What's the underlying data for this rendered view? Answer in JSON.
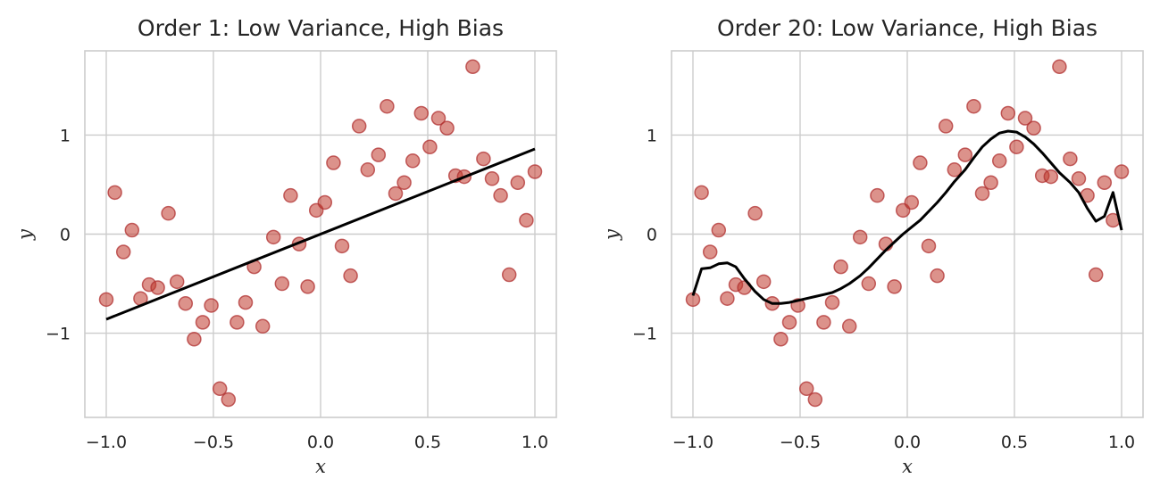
{
  "chart_data": [
    {
      "type": "scatter",
      "title": "Order 1: Low Variance, High Bias",
      "xlabel": "x",
      "ylabel": "y",
      "xlim": [
        -1.1,
        1.1
      ],
      "ylim": [
        -1.85,
        1.85
      ],
      "xticks": [
        -1.0,
        -0.5,
        0.0,
        0.5,
        1.0
      ],
      "xtick_labels": [
        "−1.0",
        "−0.5",
        "0.0",
        "0.5",
        "1.0"
      ],
      "yticks": [
        -1,
        0,
        1
      ],
      "ytick_labels": [
        "−1",
        "0",
        "1"
      ],
      "grid": true,
      "point_color": "#c0392b",
      "line_color": "#000000",
      "series": [
        {
          "kind": "points",
          "x": [
            -1.0,
            -0.96,
            -0.92,
            -0.88,
            -0.84,
            -0.8,
            -0.76,
            -0.71,
            -0.67,
            -0.63,
            -0.59,
            -0.55,
            -0.51,
            -0.47,
            -0.43,
            -0.39,
            -0.35,
            -0.31,
            -0.27,
            -0.22,
            -0.18,
            -0.14,
            -0.1,
            -0.06,
            -0.02,
            0.02,
            0.06,
            0.1,
            0.14,
            0.18,
            0.22,
            0.27,
            0.31,
            0.35,
            0.39,
            0.43,
            0.47,
            0.51,
            0.55,
            0.59,
            0.63,
            0.67,
            0.71,
            0.76,
            0.8,
            0.84,
            0.88,
            0.92,
            0.96,
            1.0
          ],
          "y": [
            -0.66,
            0.42,
            -0.18,
            0.04,
            -0.65,
            -0.51,
            -0.54,
            0.21,
            -0.48,
            -0.7,
            -1.06,
            -0.89,
            -0.72,
            -1.56,
            -1.67,
            -0.89,
            -0.69,
            -0.33,
            -0.93,
            -0.03,
            -0.5,
            0.39,
            -0.1,
            -0.53,
            0.24,
            0.32,
            0.72,
            -0.12,
            -0.42,
            1.09,
            0.65,
            0.8,
            1.29,
            0.41,
            0.52,
            0.74,
            1.22,
            0.88,
            1.17,
            1.07,
            0.59,
            0.58,
            1.69,
            0.76,
            0.56,
            0.39,
            -0.41,
            0.52,
            0.14,
            0.63
          ]
        },
        {
          "kind": "line",
          "x": [
            -1.0,
            1.0
          ],
          "y": [
            -0.86,
            0.86
          ]
        }
      ]
    },
    {
      "type": "scatter",
      "title": "Order 20: Low Variance, High Bias",
      "xlabel": "x",
      "ylabel": "y",
      "xlim": [
        -1.1,
        1.1
      ],
      "ylim": [
        -1.85,
        1.85
      ],
      "xticks": [
        -1.0,
        -0.5,
        0.0,
        0.5,
        1.0
      ],
      "xtick_labels": [
        "−1.0",
        "−0.5",
        "0.0",
        "0.5",
        "1.0"
      ],
      "yticks": [
        -1,
        0,
        1
      ],
      "ytick_labels": [
        "−1",
        "0",
        "1"
      ],
      "grid": true,
      "point_color": "#c0392b",
      "line_color": "#000000",
      "series": [
        {
          "kind": "points",
          "x": [
            -1.0,
            -0.96,
            -0.92,
            -0.88,
            -0.84,
            -0.8,
            -0.76,
            -0.71,
            -0.67,
            -0.63,
            -0.59,
            -0.55,
            -0.51,
            -0.47,
            -0.43,
            -0.39,
            -0.35,
            -0.31,
            -0.27,
            -0.22,
            -0.18,
            -0.14,
            -0.1,
            -0.06,
            -0.02,
            0.02,
            0.06,
            0.1,
            0.14,
            0.18,
            0.22,
            0.27,
            0.31,
            0.35,
            0.39,
            0.43,
            0.47,
            0.51,
            0.55,
            0.59,
            0.63,
            0.67,
            0.71,
            0.76,
            0.8,
            0.84,
            0.88,
            0.92,
            0.96,
            1.0
          ],
          "y": [
            -0.66,
            0.42,
            -0.18,
            0.04,
            -0.65,
            -0.51,
            -0.54,
            0.21,
            -0.48,
            -0.7,
            -1.06,
            -0.89,
            -0.72,
            -1.56,
            -1.67,
            -0.89,
            -0.69,
            -0.33,
            -0.93,
            -0.03,
            -0.5,
            0.39,
            -0.1,
            -0.53,
            0.24,
            0.32,
            0.72,
            -0.12,
            -0.42,
            1.09,
            0.65,
            0.8,
            1.29,
            0.41,
            0.52,
            0.74,
            1.22,
            0.88,
            1.17,
            1.07,
            0.59,
            0.58,
            1.69,
            0.76,
            0.56,
            0.39,
            -0.41,
            0.52,
            0.14,
            0.63
          ]
        },
        {
          "kind": "line",
          "x": [
            -1.0,
            -0.96,
            -0.92,
            -0.88,
            -0.84,
            -0.8,
            -0.76,
            -0.71,
            -0.67,
            -0.63,
            -0.59,
            -0.55,
            -0.51,
            -0.47,
            -0.43,
            -0.39,
            -0.35,
            -0.31,
            -0.27,
            -0.22,
            -0.18,
            -0.14,
            -0.1,
            -0.06,
            -0.02,
            0.02,
            0.06,
            0.1,
            0.14,
            0.18,
            0.22,
            0.27,
            0.31,
            0.35,
            0.39,
            0.43,
            0.47,
            0.51,
            0.55,
            0.59,
            0.63,
            0.67,
            0.71,
            0.76,
            0.8,
            0.84,
            0.88,
            0.92,
            0.96,
            1.0
          ],
          "y": [
            -0.62,
            -0.35,
            -0.34,
            -0.3,
            -0.29,
            -0.33,
            -0.45,
            -0.58,
            -0.66,
            -0.7,
            -0.7,
            -0.69,
            -0.67,
            -0.65,
            -0.63,
            -0.61,
            -0.59,
            -0.55,
            -0.5,
            -0.42,
            -0.34,
            -0.25,
            -0.16,
            -0.08,
            0.0,
            0.07,
            0.14,
            0.23,
            0.32,
            0.42,
            0.53,
            0.65,
            0.77,
            0.88,
            0.96,
            1.02,
            1.04,
            1.03,
            0.98,
            0.91,
            0.82,
            0.72,
            0.62,
            0.52,
            0.42,
            0.26,
            0.13,
            0.18,
            0.42,
            0.04
          ]
        }
      ]
    }
  ]
}
